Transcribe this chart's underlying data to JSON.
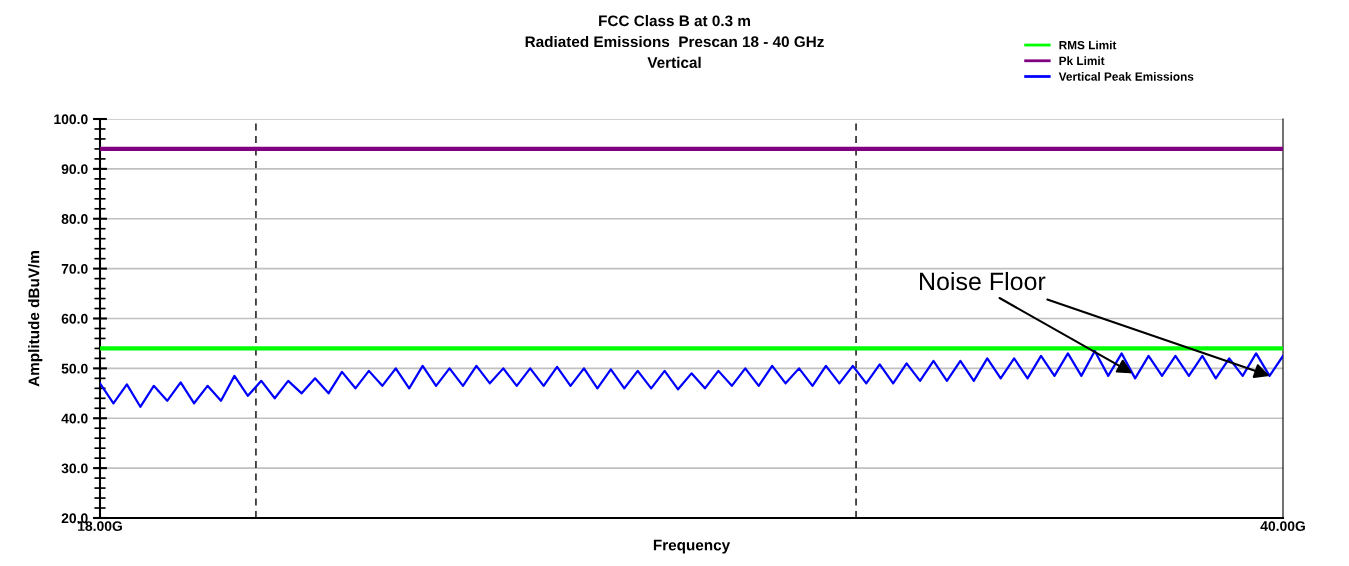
{
  "chart_data": {
    "type": "line",
    "title": "FCC Class B at 0.3 m\nRadiated Emissions  Prescan 18 - 40 GHz\nVertical",
    "xlabel": "Frequency",
    "ylabel": "Amplitude dBuV/m",
    "xlim": [
      18,
      40
    ],
    "xticks": [
      {
        "value": 18,
        "label": "18.00G"
      },
      {
        "value": 40,
        "label": "40.00G"
      }
    ],
    "ylim": [
      20,
      100
    ],
    "yticks": [
      {
        "value": 20,
        "label": "20.0"
      },
      {
        "value": 30,
        "label": "30.0"
      },
      {
        "value": 40,
        "label": "40.0"
      },
      {
        "value": 50,
        "label": "50.0"
      },
      {
        "value": 60,
        "label": "60.0"
      },
      {
        "value": 70,
        "label": "70.0"
      },
      {
        "value": 80,
        "label": "80.0"
      },
      {
        "value": 90,
        "label": "90.0"
      },
      {
        "value": 100,
        "label": "100.0"
      }
    ],
    "grid": "y",
    "legend": "top right",
    "marker": "none",
    "line_style": "solid",
    "series": [
      {
        "name": "RMS Limit",
        "color": "#00ff00",
        "x": [
          18,
          40
        ],
        "values": [
          54,
          54
        ]
      },
      {
        "name": "Pk Limit",
        "color": "#800080",
        "x": [
          18,
          40
        ],
        "values": [
          94,
          94
        ]
      },
      {
        "name": "Vertical Peak Emissions",
        "color": "#0000ff",
        "x": [
          18.0,
          18.25,
          18.5,
          18.75,
          19.0,
          19.25,
          19.5,
          19.75,
          20.0,
          20.25,
          20.5,
          20.75,
          21.0,
          21.25,
          21.5,
          21.75,
          22.0,
          22.25,
          22.5,
          22.75,
          23.0,
          23.25,
          23.5,
          23.75,
          24.0,
          24.25,
          24.5,
          24.75,
          25.0,
          25.25,
          25.5,
          25.75,
          26.0,
          26.25,
          26.5,
          26.75,
          27.0,
          27.25,
          27.5,
          27.75,
          28.0,
          28.25,
          28.5,
          28.75,
          29.0,
          29.25,
          29.5,
          29.75,
          30.0,
          30.25,
          30.5,
          30.75,
          31.0,
          31.25,
          31.5,
          31.75,
          32.0,
          32.25,
          32.5,
          32.75,
          33.0,
          33.25,
          33.5,
          33.75,
          34.0,
          34.25,
          34.5,
          34.75,
          35.0,
          35.25,
          35.5,
          35.75,
          36.0,
          36.25,
          36.5,
          36.75,
          37.0,
          37.25,
          37.5,
          37.75,
          38.0,
          38.25,
          38.5,
          38.75,
          39.0,
          39.25,
          39.5,
          39.75,
          40.0
        ],
        "values": [
          47.0,
          43.0,
          46.8,
          42.3,
          46.5,
          43.5,
          47.2,
          43.0,
          46.5,
          43.5,
          48.5,
          44.5,
          47.5,
          44.0,
          47.5,
          45.0,
          48.0,
          45.0,
          49.3,
          46.0,
          49.5,
          46.5,
          50.0,
          46.0,
          50.5,
          46.5,
          50.0,
          46.5,
          50.5,
          47.0,
          50.0,
          46.5,
          50.0,
          46.5,
          50.3,
          46.5,
          50.0,
          46.0,
          49.8,
          46.0,
          49.5,
          46.0,
          49.5,
          45.8,
          49.0,
          46.0,
          49.5,
          46.5,
          50.0,
          46.5,
          50.5,
          47.0,
          50.0,
          46.5,
          50.5,
          47.0,
          50.5,
          47.0,
          50.8,
          47.0,
          51.0,
          47.5,
          51.5,
          47.5,
          51.5,
          47.5,
          52.0,
          48.0,
          52.0,
          48.0,
          52.5,
          48.5,
          53.0,
          48.5,
          53.5,
          48.5,
          53.0,
          48.0,
          52.5,
          48.5,
          52.5,
          48.5,
          52.5,
          48.0,
          52.0,
          48.5,
          53.0,
          48.5,
          52.5
        ]
      }
    ],
    "ref_lines": [
      {
        "axis": "x",
        "value": 20.9,
        "color": "#000000",
        "line_style": "dashed"
      },
      {
        "axis": "x",
        "value": 32.06,
        "color": "#000000",
        "line_style": "dashed"
      }
    ],
    "annotations": [
      {
        "text": "Noise Floor",
        "x": 37.2,
        "y": 49.0
      }
    ]
  }
}
